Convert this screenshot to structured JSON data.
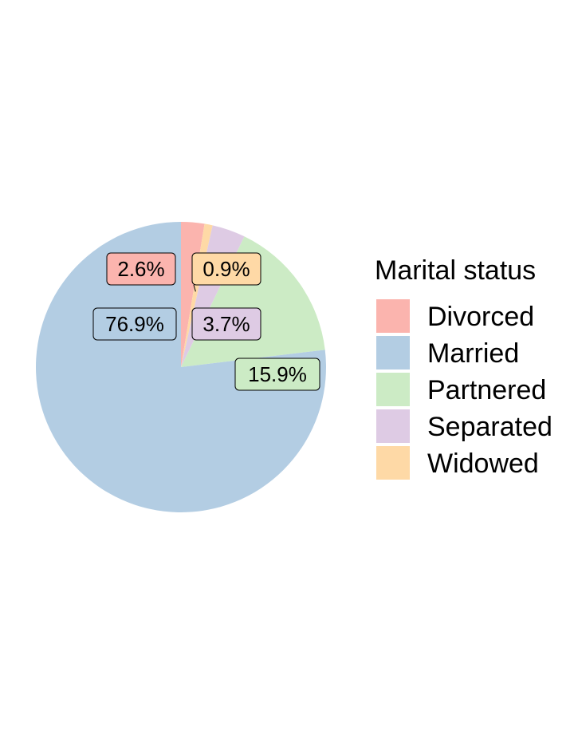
{
  "chart_data": {
    "type": "pie",
    "legend_title": "Marital status",
    "legend_position": "right",
    "slices": [
      {
        "name": "Divorced",
        "value": 2.6,
        "label": "2.6%",
        "color": "#FBB4AE"
      },
      {
        "name": "Widowed",
        "value": 0.9,
        "label": "0.9%",
        "color": "#FED9A6"
      },
      {
        "name": "Separated",
        "value": 3.7,
        "label": "3.7%",
        "color": "#DECBE4"
      },
      {
        "name": "Partnered",
        "value": 15.9,
        "label": "15.9%",
        "color": "#CCEBC5"
      },
      {
        "name": "Married",
        "value": 76.9,
        "label": "76.9%",
        "color": "#B3CDE3"
      }
    ],
    "legend_order": [
      "Divorced",
      "Married",
      "Partnered",
      "Separated",
      "Widowed"
    ]
  }
}
